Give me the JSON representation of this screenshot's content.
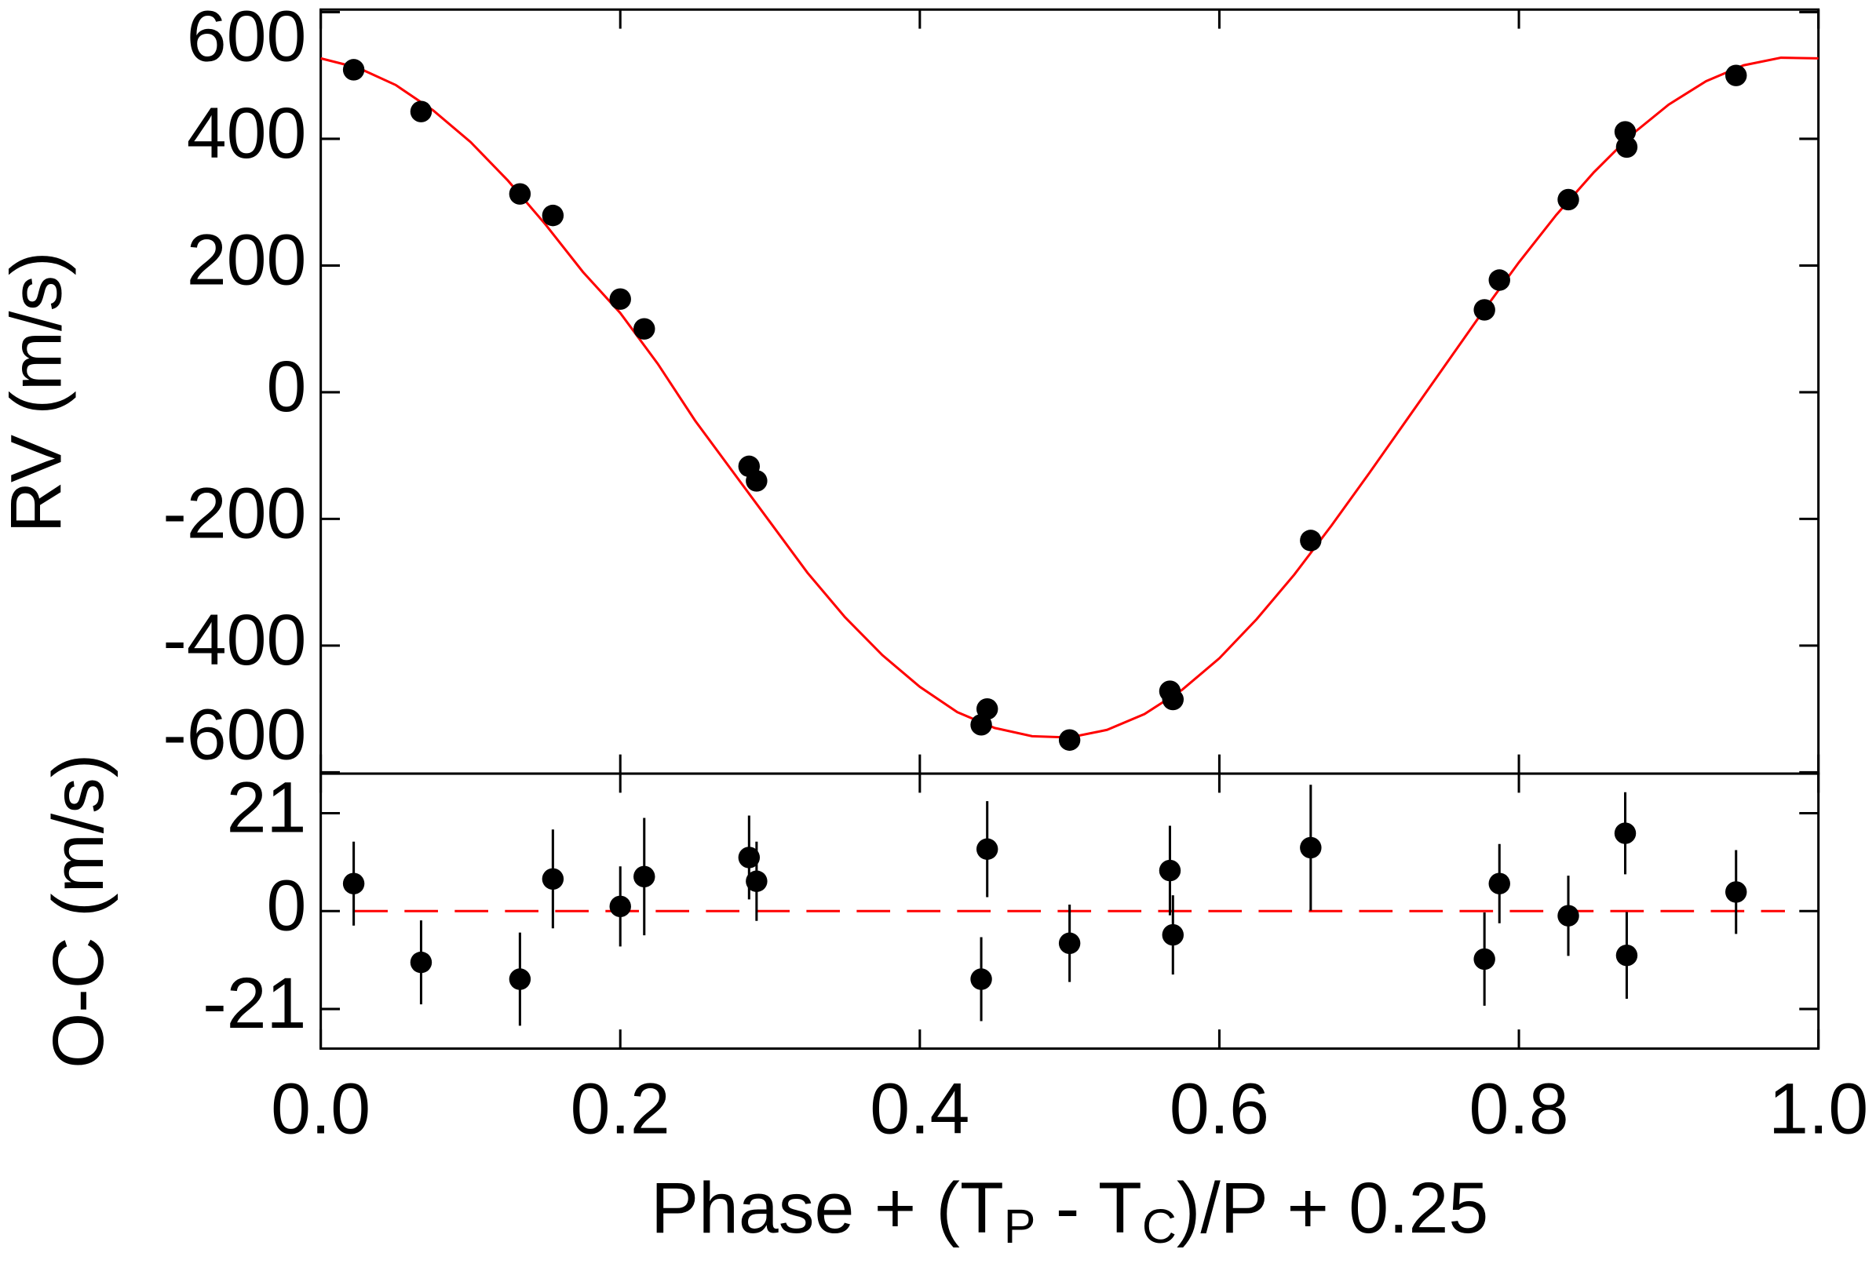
{
  "chart_data": [
    {
      "type": "scatter",
      "y_label": "RV (m/s)",
      "x": [
        0.022,
        0.067,
        0.133,
        0.155,
        0.2,
        0.216,
        0.286,
        0.291,
        0.441,
        0.445,
        0.5,
        0.567,
        0.569,
        0.661,
        0.777,
        0.787,
        0.833,
        0.871,
        0.872,
        0.945
      ],
      "values": [
        509,
        443,
        313,
        279,
        147,
        100,
        -117,
        -140,
        -525,
        -500,
        -549,
        -472,
        -485,
        -234,
        130,
        177,
        304,
        411,
        387,
        500
      ],
      "color": "#000000",
      "model": {
        "color": "#ff0000",
        "x": [
          0,
          0.025,
          0.05,
          0.075,
          0.1,
          0.125,
          0.15,
          0.175,
          0.2,
          0.225,
          0.25,
          0.275,
          0.3,
          0.325,
          0.35,
          0.375,
          0.4,
          0.425,
          0.45,
          0.475,
          0.5,
          0.525,
          0.55,
          0.575,
          0.6,
          0.625,
          0.65,
          0.675,
          0.7,
          0.725,
          0.75,
          0.775,
          0.8,
          0.825,
          0.85,
          0.875,
          0.9,
          0.925,
          0.95,
          0.975,
          1
        ],
        "values": [
          527,
          512,
          485,
          445,
          395,
          334,
          265,
          190,
          125,
          45,
          -45,
          -125,
          -205,
          -285,
          -355,
          -415,
          -465,
          -505,
          -530,
          -543,
          -545,
          -533,
          -508,
          -470,
          -420,
          -358,
          -288,
          -210,
          -128,
          -44,
          40,
          124,
          205,
          280,
          347,
          406,
          454,
          491,
          516,
          528,
          527
        ]
      },
      "ylim": [
        -602,
        604
      ],
      "yticks": [
        -600,
        -400,
        -200,
        0,
        200,
        400,
        600
      ],
      "xlim": [
        0,
        1
      ]
    },
    {
      "type": "errorbar",
      "y_label": "O-C (m/s)",
      "x_label": [
        "Phase + (T",
        "P",
        " - T",
        "C",
        ")/P + 0.25"
      ],
      "x": [
        0.022,
        0.067,
        0.133,
        0.155,
        0.2,
        0.216,
        0.286,
        0.291,
        0.441,
        0.445,
        0.5,
        0.567,
        0.569,
        0.661,
        0.777,
        0.787,
        0.833,
        0.871,
        0.872,
        0.945
      ],
      "values": [
        5.9,
        -11.0,
        -14.6,
        6.9,
        1.0,
        7.4,
        11.5,
        6.4,
        -14.6,
        13.3,
        -6.9,
        8.7,
        -5.1,
        13.6,
        -10.3,
        5.9,
        -1.0,
        16.7,
        -9.5,
        4.1
      ],
      "errors": [
        9,
        9,
        10,
        10.6,
        8.6,
        12.6,
        9,
        8.5,
        9,
        10.3,
        8.3,
        9.6,
        8.5,
        13.5,
        10,
        8.5,
        8.6,
        8.8,
        9.3,
        9
      ],
      "color": "#000000",
      "ref_line": {
        "value": 0,
        "color": "#ff0000"
      },
      "ylim": [
        -29.5,
        29.5
      ],
      "yticks": [
        -21,
        0,
        21
      ],
      "xlim": [
        0,
        1
      ],
      "xticks": [
        {
          "value": 0,
          "label": "0.0"
        },
        {
          "value": 0.2,
          "label": "0.2"
        },
        {
          "value": 0.4,
          "label": "0.4"
        },
        {
          "value": 0.6,
          "label": "0.6"
        },
        {
          "value": 0.8,
          "label": "0.8"
        },
        {
          "value": 1,
          "label": "1.0"
        }
      ]
    }
  ]
}
